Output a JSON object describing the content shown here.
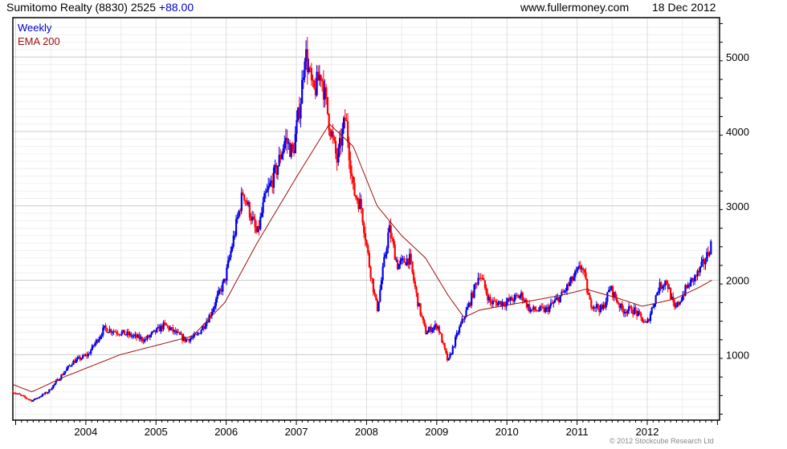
{
  "header": {
    "title": "Sumitomo Realty (8830) 2525",
    "change": "+88.00",
    "site": "www.fullermoney.com",
    "date": "18 Dec 2012"
  },
  "legend": {
    "weekly": "Weekly",
    "ema": "EMA 200"
  },
  "copyright": "© 2012 Stockcube Research Ltd",
  "colors": {
    "up": "#0000ee",
    "down": "#ff0000",
    "ema": "#a01010",
    "grid": "#e4e4e4"
  },
  "chart_data": {
    "type": "candlestick",
    "title": "Sumitomo Realty (8830) 2525 +88.00",
    "xlim": [
      2002.96,
      2013.03
    ],
    "ylim": [
      120,
      5530
    ],
    "x_ticks": [
      "2004",
      "2005",
      "2006",
      "2007",
      "2008",
      "2009",
      "2010",
      "2011",
      "2012"
    ],
    "y_ticks": [
      1000,
      2000,
      3000,
      4000,
      5000
    ],
    "y_tick_labels": [
      "1000",
      "2000",
      "3000",
      "4000",
      "5000"
    ],
    "grid": true,
    "legend_position": "top-left",
    "series": [
      {
        "name": "Weekly",
        "type": "price",
        "points": [
          [
            2002.96,
            500
          ],
          [
            2003.23,
            380
          ],
          [
            2003.46,
            500
          ],
          [
            2003.81,
            900
          ],
          [
            2004.03,
            1000
          ],
          [
            2004.26,
            1350
          ],
          [
            2004.49,
            1300
          ],
          [
            2004.84,
            1200
          ],
          [
            2005.12,
            1400
          ],
          [
            2005.41,
            1200
          ],
          [
            2005.58,
            1250
          ],
          [
            2005.75,
            1500
          ],
          [
            2005.98,
            2000
          ],
          [
            2006.09,
            2500
          ],
          [
            2006.24,
            3200
          ],
          [
            2006.44,
            2600
          ],
          [
            2006.55,
            3100
          ],
          [
            2006.72,
            3500
          ],
          [
            2006.84,
            3900
          ],
          [
            2006.95,
            3700
          ],
          [
            2007.07,
            4500
          ],
          [
            2007.12,
            5100
          ],
          [
            2007.24,
            4500
          ],
          [
            2007.35,
            4800
          ],
          [
            2007.47,
            4100
          ],
          [
            2007.58,
            3600
          ],
          [
            2007.7,
            4200
          ],
          [
            2007.81,
            3200
          ],
          [
            2007.92,
            3000
          ],
          [
            2008.04,
            2200
          ],
          [
            2008.15,
            1600
          ],
          [
            2008.32,
            2700
          ],
          [
            2008.44,
            2200
          ],
          [
            2008.61,
            2300
          ],
          [
            2008.73,
            1700
          ],
          [
            2008.84,
            1300
          ],
          [
            2009.01,
            1400
          ],
          [
            2009.16,
            900
          ],
          [
            2009.3,
            1300
          ],
          [
            2009.47,
            1700
          ],
          [
            2009.61,
            2100
          ],
          [
            2009.76,
            1700
          ],
          [
            2009.98,
            1700
          ],
          [
            2010.21,
            1800
          ],
          [
            2010.33,
            1600
          ],
          [
            2010.56,
            1600
          ],
          [
            2010.78,
            1800
          ],
          [
            2011.07,
            2200
          ],
          [
            2011.18,
            1700
          ],
          [
            2011.36,
            1600
          ],
          [
            2011.47,
            1900
          ],
          [
            2011.64,
            1600
          ],
          [
            2011.81,
            1600
          ],
          [
            2011.99,
            1400
          ],
          [
            2012.16,
            1900
          ],
          [
            2012.27,
            2000
          ],
          [
            2012.39,
            1600
          ],
          [
            2012.56,
            1900
          ],
          [
            2012.73,
            2100
          ],
          [
            2012.84,
            2300
          ],
          [
            2012.92,
            2525
          ]
        ]
      },
      {
        "name": "EMA 200",
        "type": "line",
        "points": [
          [
            2002.96,
            600
          ],
          [
            2003.23,
            500
          ],
          [
            2003.69,
            700
          ],
          [
            2004.49,
            1000
          ],
          [
            2005.52,
            1250
          ],
          [
            2005.98,
            1700
          ],
          [
            2006.44,
            2500
          ],
          [
            2007.01,
            3400
          ],
          [
            2007.47,
            4100
          ],
          [
            2007.81,
            3800
          ],
          [
            2008.15,
            3000
          ],
          [
            2008.5,
            2600
          ],
          [
            2008.84,
            2300
          ],
          [
            2009.16,
            1800
          ],
          [
            2009.39,
            1500
          ],
          [
            2009.61,
            1600
          ],
          [
            2010.21,
            1700
          ],
          [
            2010.78,
            1800
          ],
          [
            2011.13,
            1880
          ],
          [
            2011.58,
            1760
          ],
          [
            2011.93,
            1650
          ],
          [
            2012.39,
            1750
          ],
          [
            2012.73,
            1900
          ],
          [
            2012.92,
            2000
          ]
        ]
      }
    ]
  }
}
